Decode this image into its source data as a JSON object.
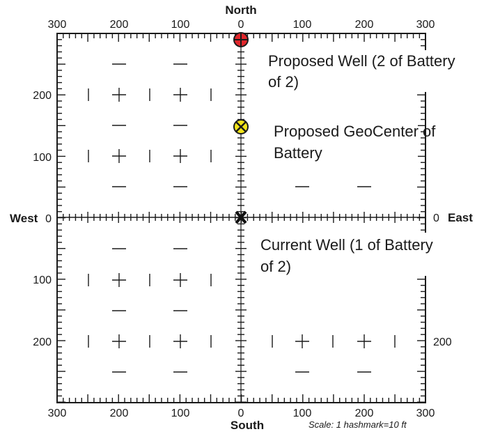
{
  "directions": {
    "north": "North",
    "south": "South",
    "west": "West",
    "east": "East"
  },
  "top_ticks": [
    "300",
    "200",
    "100",
    "0",
    "100",
    "200",
    "300"
  ],
  "bottom_ticks": [
    "300",
    "200",
    "100",
    "0",
    "100",
    "200",
    "300"
  ],
  "left_ticks": [
    "200",
    "100",
    "0",
    "100",
    "200"
  ],
  "right_ticks": [
    "0",
    "200"
  ],
  "annotations": {
    "proposed_well": [
      "Proposed Well (2 of Battery",
      "of 2)"
    ],
    "proposed_geocenter": [
      "Proposed GeoCenter of",
      "Battery"
    ],
    "current_well": [
      "Current Well (1 of Battery",
      "of 2)"
    ]
  },
  "scale_note": "Scale:  1 hashmark=10 ft",
  "colors": {
    "proposed_well": "#e0262b",
    "geocenter": "#f2e41a",
    "current_well": "#111111"
  }
}
